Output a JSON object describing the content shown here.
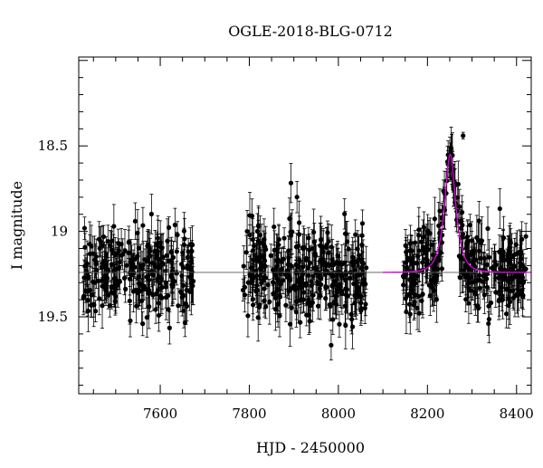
{
  "chart_data": {
    "type": "scatter",
    "title": "OGLE-2018-BLG-0712",
    "xlabel": "HJD - 2450000",
    "ylabel": "I magnitude",
    "xlim": [
      7417,
      8433
    ],
    "ylim": [
      17.98,
      19.95
    ],
    "y_inverted": true,
    "x_ticks": [
      7600,
      7800,
      8000,
      8200,
      8400
    ],
    "x_tick_labels": [
      "7600",
      "7800",
      "8000",
      "8200",
      "8400"
    ],
    "y_ticks": [
      18.5,
      19,
      19.5
    ],
    "y_tick_labels": [
      "18.5",
      "19",
      "19.5"
    ],
    "grid": false,
    "seasons": [
      {
        "start": 7427,
        "end": 7677,
        "points": 260
      },
      {
        "start": 7785,
        "end": 8064,
        "points": 330
      },
      {
        "start": 8145,
        "end": 8422,
        "points": 330
      }
    ],
    "baseline_mag": 19.24,
    "scatter_mag": 0.13,
    "typical_error_mag": 0.1,
    "model": {
      "t0": 8251,
      "u0": 0.58,
      "tE": 20,
      "peak_mag": 18.55,
      "color": "#e000e0"
    },
    "baseline_line_color": "#555555",
    "extra_points": [
      {
        "x": 8280,
        "y": 18.44,
        "err": 0.02
      }
    ],
    "point_color": "#000000"
  }
}
